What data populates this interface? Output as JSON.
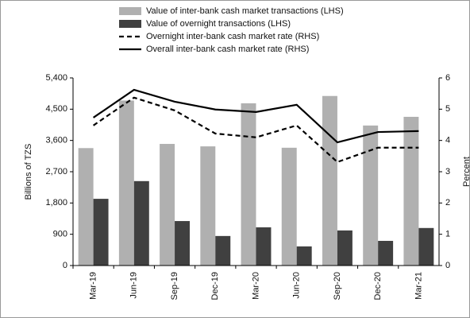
{
  "chart_data": {
    "type": "bar",
    "categories": [
      "Mar-19",
      "Jun-19",
      "Sep-19",
      "Dec-19",
      "Mar-20",
      "Jun-20",
      "Sep-20",
      "Dec-20",
      "Mar-21"
    ],
    "series": [
      {
        "name": "Value of inter-bank cash market transactions (LHS)",
        "color": "#b0b0b0",
        "values": [
          3380,
          4750,
          3500,
          3430,
          4670,
          3390,
          4880,
          4030,
          4280
        ]
      },
      {
        "name": "Value of overnight transactions (LHS)",
        "color": "#404040",
        "values": [
          1920,
          2430,
          1280,
          850,
          1100,
          550,
          1010,
          710,
          1080
        ]
      },
      {
        "name": "Overnight inter-bank cash market rate (RHS)",
        "color": "#000000",
        "axis": "y2",
        "dash": "dashed",
        "values": [
          4.48,
          5.37,
          4.96,
          4.22,
          4.1,
          4.48,
          3.31,
          3.77,
          3.77
        ]
      },
      {
        "name": "Overall inter-bank cash market rate (RHS)",
        "color": "#000000",
        "axis": "y2",
        "values": [
          4.73,
          5.62,
          5.24,
          4.99,
          4.91,
          5.14,
          3.94,
          4.27,
          4.3
        ]
      }
    ],
    "ylabel": "Billions of TZS",
    "y2label": "Percent",
    "ylim": [
      0,
      5400
    ],
    "yticks": [
      0,
      900,
      {
        "value": 1800,
        "label": "1,800"
      },
      {
        "value": 2700,
        "label": "2,700"
      },
      {
        "value": 3600,
        "label": "3,600"
      },
      {
        "value": 4500,
        "label": "4,500"
      },
      {
        "value": 5400,
        "label": "5,400"
      }
    ],
    "y2lim": [
      0,
      6
    ],
    "y2ticks": [
      0,
      1,
      2,
      3,
      4,
      5,
      6
    ],
    "legend": "top"
  }
}
